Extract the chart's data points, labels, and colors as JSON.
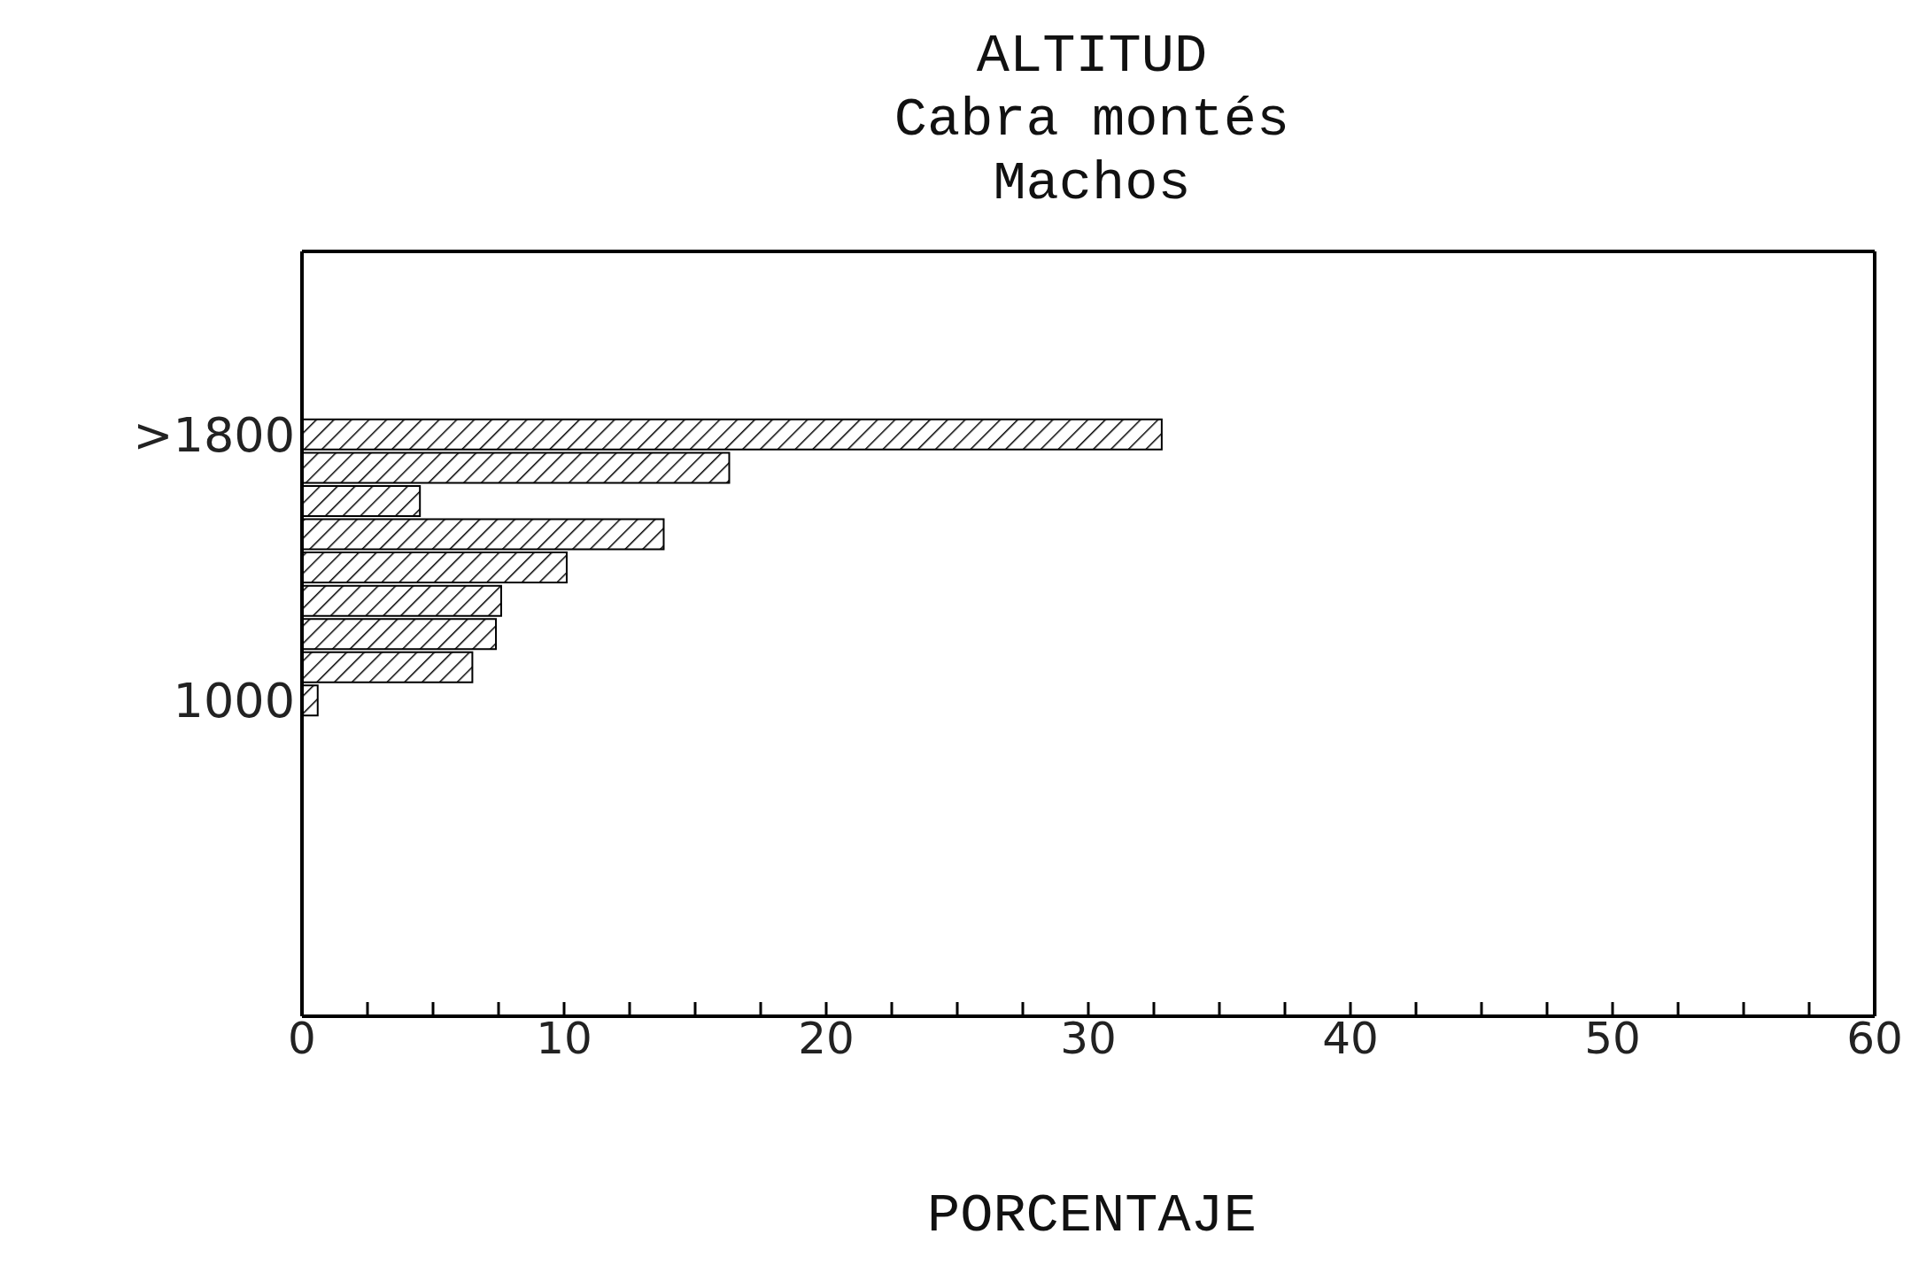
{
  "chart_data": {
    "type": "bar",
    "orientation": "horizontal",
    "title": "ALTITUD",
    "subtitle": "Cabra montés\nMachos",
    "xlabel": "PORCENTAJE",
    "categories": [
      null,
      null,
      null,
      null,
      null,
      ">1800",
      null,
      null,
      null,
      null,
      null,
      null,
      null,
      "1000",
      null,
      null,
      null,
      null,
      null,
      null,
      null,
      null,
      null
    ],
    "values": [
      null,
      null,
      null,
      null,
      null,
      32.8,
      16.3,
      4.5,
      13.8,
      10.1,
      7.6,
      7.4,
      6.5,
      0.6,
      null,
      null,
      null,
      null,
      null,
      null,
      null,
      null,
      null
    ],
    "color": "#000000",
    "xlim": [
      0,
      60
    ],
    "xticks": [
      0,
      {
        "value": 2.5,
        "label": null
      },
      {
        "value": 5,
        "label": null
      },
      {
        "value": 7.5,
        "label": null
      },
      10,
      {
        "value": 12.5,
        "label": null
      },
      {
        "value": 15,
        "label": null
      },
      {
        "value": 17.5,
        "label": null
      },
      20,
      {
        "value": 22.5,
        "label": null
      },
      {
        "value": 25,
        "label": null
      },
      {
        "value": 27.5,
        "label": null
      },
      30,
      {
        "value": 32.5,
        "label": null
      },
      {
        "value": 35,
        "label": null
      },
      {
        "value": 37.5,
        "label": null
      },
      40,
      {
        "value": 42.5,
        "label": null
      },
      {
        "value": 45,
        "label": null
      },
      {
        "value": 47.5,
        "label": null
      },
      50,
      {
        "value": 52.5,
        "label": null
      },
      {
        "value": 55,
        "label": null
      },
      {
        "value": 57.5,
        "label": null
      },
      60
    ]
  }
}
